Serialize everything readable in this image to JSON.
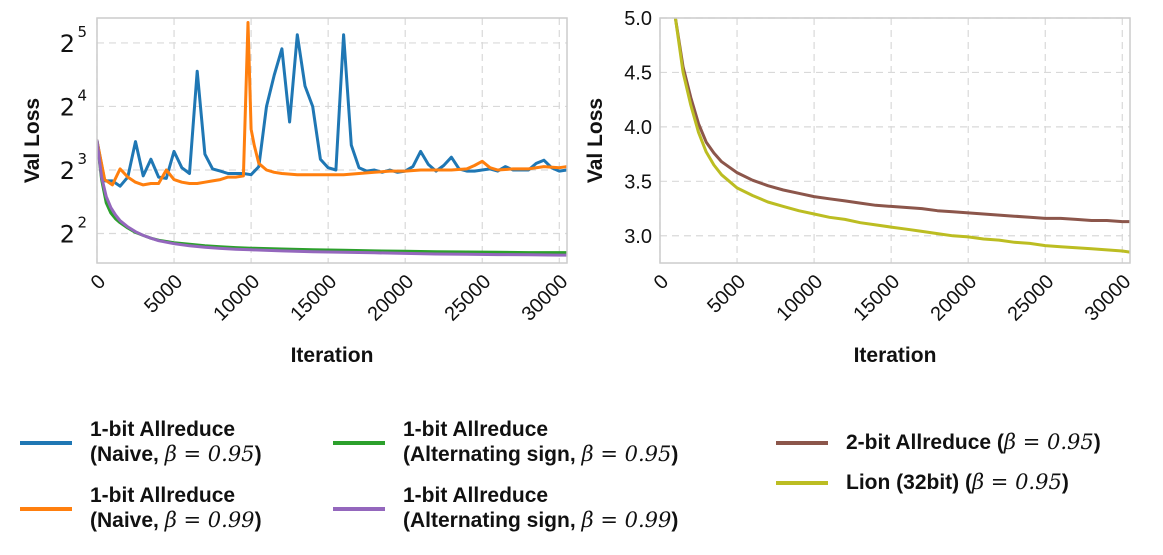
{
  "colors": {
    "naive95": "#1f77b4",
    "naive99": "#ff7f0e",
    "alt95": "#2ca02c",
    "alt99": "#9467bd",
    "twobit": "#8c564b",
    "lion": "#bcbd22",
    "grid": "#d9d9d9",
    "frame": "#cccccc",
    "text": "#111111"
  },
  "legend": [
    {
      "key": "naive95",
      "line1": "1-bit Allreduce",
      "line2_pre": "(Naive, ",
      "line2_math": "β = 0.95",
      "line2_post": ")"
    },
    {
      "key": "naive99",
      "line1": "1-bit Allreduce",
      "line2_pre": "(Naive, ",
      "line2_math": "β = 0.99",
      "line2_post": ")"
    },
    {
      "key": "alt95",
      "line1": "1-bit Allreduce",
      "line2_pre": "(Alternating  sign, ",
      "line2_math": "β = 0.95",
      "line2_post": ")"
    },
    {
      "key": "alt99",
      "line1": "1-bit Allreduce",
      "line2_pre": "(Alternating  sign, ",
      "line2_math": "β = 0.99",
      "line2_post": ")"
    },
    {
      "key": "twobit",
      "line1": "",
      "line2_pre": "2-bit Allreduce (",
      "line2_math": "β = 0.95",
      "line2_post": ")"
    },
    {
      "key": "lion",
      "line1": "",
      "line2_pre": "Lion (32bit) (",
      "line2_math": "β = 0.95",
      "line2_post": ")"
    }
  ],
  "chart_data": [
    {
      "type": "line",
      "title": "",
      "xlabel": "Iteration",
      "ylabel": "Val Loss",
      "yscale": "log2",
      "xlim": [
        0,
        30500
      ],
      "ylim": [
        2.9,
        42
      ],
      "xticks": [
        0,
        5000,
        10000,
        15000,
        20000,
        25000,
        30000
      ],
      "xtick_labels": [
        "0",
        "5000",
        "10000",
        "15000",
        "20000",
        "25000",
        "30000"
      ],
      "yticks": [
        4,
        8,
        16,
        32
      ],
      "ytick_base": "2",
      "ytick_exps": [
        "2",
        "3",
        "4",
        "5"
      ],
      "grid": true,
      "series": [
        {
          "name": "1-bit Allreduce (Naive, β = 0.95)",
          "key": "naive95",
          "x": [
            0,
            500,
            1000,
            1500,
            2000,
            2500,
            3000,
            3500,
            4000,
            4500,
            5000,
            5500,
            6000,
            6500,
            7000,
            7500,
            8000,
            8500,
            9000,
            9500,
            10000,
            10500,
            11000,
            11500,
            12000,
            12500,
            13000,
            13500,
            14000,
            14500,
            15000,
            15500,
            16000,
            16500,
            17000,
            17500,
            18000,
            18500,
            19000,
            19500,
            20000,
            20500,
            21000,
            21500,
            22000,
            22500,
            23000,
            23500,
            24000,
            24500,
            25000,
            25500,
            26000,
            26500,
            27000,
            27500,
            28000,
            28500,
            29000,
            29500,
            30000,
            30500
          ],
          "y": [
            11,
            7.1,
            7.1,
            6.7,
            7.4,
            10.9,
            7.5,
            9,
            7.4,
            7.3,
            9.8,
            8.2,
            7.7,
            23.5,
            9.5,
            8.1,
            7.9,
            7.7,
            7.7,
            7.7,
            7.6,
            8.3,
            16,
            22.5,
            30,
            13.5,
            35,
            20,
            16,
            9,
            8.2,
            8,
            35,
            10.5,
            8.2,
            7.9,
            8,
            7.8,
            8,
            7.8,
            7.9,
            8.3,
            9.8,
            8.5,
            7.9,
            8.4,
            9.2,
            8.1,
            7.9,
            7.9,
            8,
            8.1,
            7.9,
            8.3,
            8,
            8,
            8,
            8.6,
            8.9,
            8.2,
            7.9,
            8
          ]
        },
        {
          "name": "1-bit Allreduce (Naive, β = 0.99)",
          "key": "naive99",
          "x": [
            0,
            500,
            1000,
            1500,
            2000,
            2500,
            3000,
            3500,
            4000,
            4500,
            5000,
            5500,
            6000,
            6500,
            7000,
            7500,
            8000,
            8500,
            9000,
            9500,
            9800,
            10000,
            10200,
            10500,
            11000,
            11500,
            12000,
            13000,
            14000,
            15000,
            16000,
            17000,
            18000,
            19000,
            20000,
            21000,
            22000,
            23000,
            24000,
            24500,
            25000,
            25500,
            26000,
            27000,
            28000,
            29000,
            30000,
            30500
          ],
          "y": [
            11,
            7.2,
            6.8,
            8.1,
            7.4,
            7,
            6.8,
            6.9,
            6.9,
            8,
            7.2,
            7,
            6.9,
            6.9,
            7,
            7.1,
            7.2,
            7.4,
            7.4,
            7.5,
            40,
            12.5,
            10.5,
            8.6,
            8.0,
            7.8,
            7.7,
            7.6,
            7.6,
            7.6,
            7.6,
            7.7,
            7.8,
            7.9,
            7.9,
            8.0,
            8.0,
            8.0,
            8.1,
            8.4,
            8.8,
            8.2,
            8.0,
            8.1,
            8.1,
            8.3,
            8.2,
            8.3
          ]
        },
        {
          "name": "1-bit Allreduce (Alternating sign, β = 0.95)",
          "key": "alt95",
          "x": [
            0,
            300,
            600,
            900,
            1200,
            1500,
            2000,
            2500,
            3000,
            3500,
            4000,
            5000,
            6000,
            7000,
            8000,
            9000,
            10000,
            12000,
            14000,
            16000,
            18000,
            20000,
            22000,
            24000,
            26000,
            28000,
            30000,
            30500
          ],
          "y": [
            11,
            7.2,
            5.6,
            5.0,
            4.7,
            4.5,
            4.25,
            4.05,
            3.92,
            3.8,
            3.72,
            3.62,
            3.56,
            3.5,
            3.46,
            3.43,
            3.41,
            3.38,
            3.35,
            3.33,
            3.31,
            3.3,
            3.28,
            3.27,
            3.26,
            3.25,
            3.25,
            3.25
          ]
        },
        {
          "name": "1-bit Allreduce (Alternating sign, β = 0.99)",
          "key": "alt99",
          "x": [
            0,
            300,
            600,
            900,
            1200,
            1500,
            2000,
            2500,
            3000,
            3500,
            4000,
            5000,
            6000,
            7000,
            8000,
            9000,
            10000,
            12000,
            14000,
            16000,
            18000,
            20000,
            22000,
            24000,
            26000,
            28000,
            30000,
            30500
          ],
          "y": [
            11,
            7.4,
            6.0,
            5.3,
            4.9,
            4.6,
            4.3,
            4.08,
            3.92,
            3.8,
            3.7,
            3.58,
            3.5,
            3.44,
            3.4,
            3.37,
            3.35,
            3.31,
            3.28,
            3.26,
            3.24,
            3.22,
            3.2,
            3.19,
            3.18,
            3.17,
            3.16,
            3.16
          ]
        }
      ]
    },
    {
      "type": "line",
      "title": "",
      "xlabel": "Iteration",
      "ylabel": "Val Loss",
      "yscale": "linear",
      "xlim": [
        0,
        30500
      ],
      "ylim": [
        2.75,
        5.0
      ],
      "xticks": [
        0,
        5000,
        10000,
        15000,
        20000,
        25000,
        30000
      ],
      "xtick_labels": [
        "0",
        "5000",
        "10000",
        "15000",
        "20000",
        "25000",
        "30000"
      ],
      "yticks": [
        3.0,
        3.5,
        4.0,
        4.5,
        5.0
      ],
      "ytick_labels": [
        "3.0",
        "3.5",
        "4.0",
        "4.5",
        "5.0"
      ],
      "grid": true,
      "series": [
        {
          "name": "2-bit Allreduce (β = 0.95)",
          "key": "twobit",
          "x": [
            1000,
            1500,
            2000,
            2500,
            3000,
            3500,
            4000,
            4500,
            5000,
            6000,
            7000,
            8000,
            9000,
            10000,
            11000,
            12000,
            13000,
            14000,
            15000,
            16000,
            17000,
            18000,
            19000,
            20000,
            21000,
            22000,
            23000,
            24000,
            25000,
            26000,
            27000,
            28000,
            29000,
            30000,
            30500
          ],
          "y": [
            5.0,
            4.55,
            4.27,
            4.03,
            3.86,
            3.76,
            3.68,
            3.63,
            3.58,
            3.51,
            3.46,
            3.42,
            3.39,
            3.36,
            3.34,
            3.32,
            3.3,
            3.28,
            3.27,
            3.26,
            3.25,
            3.23,
            3.22,
            3.21,
            3.2,
            3.19,
            3.18,
            3.17,
            3.16,
            3.16,
            3.15,
            3.14,
            3.14,
            3.13,
            3.13
          ]
        },
        {
          "name": "Lion (32bit) (β = 0.95)",
          "key": "lion",
          "x": [
            1000,
            1500,
            2000,
            2500,
            3000,
            3500,
            4000,
            4500,
            5000,
            6000,
            7000,
            8000,
            9000,
            10000,
            11000,
            12000,
            13000,
            14000,
            15000,
            16000,
            17000,
            18000,
            19000,
            20000,
            21000,
            22000,
            23000,
            24000,
            25000,
            26000,
            27000,
            28000,
            29000,
            30000,
            30500
          ],
          "y": [
            5.0,
            4.5,
            4.2,
            3.95,
            3.77,
            3.65,
            3.56,
            3.5,
            3.44,
            3.37,
            3.31,
            3.27,
            3.23,
            3.2,
            3.17,
            3.15,
            3.12,
            3.1,
            3.08,
            3.06,
            3.04,
            3.02,
            3.0,
            2.99,
            2.97,
            2.96,
            2.94,
            2.93,
            2.91,
            2.9,
            2.89,
            2.88,
            2.87,
            2.86,
            2.85
          ]
        }
      ]
    }
  ]
}
